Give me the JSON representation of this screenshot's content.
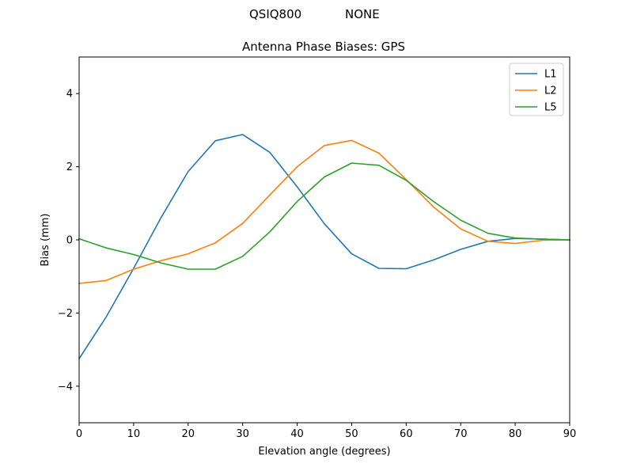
{
  "figure": {
    "suptitle_left": "QSIQ800",
    "suptitle_right": "NONE"
  },
  "chart_data": {
    "type": "line",
    "title": "Antenna Phase Biases: GPS",
    "xlabel": "Elevation angle (degrees)",
    "ylabel": "Bias (mm)",
    "xlim": [
      0,
      90
    ],
    "ylim": [
      -5,
      5
    ],
    "xticks": [
      0,
      10,
      20,
      30,
      40,
      50,
      60,
      70,
      80,
      90
    ],
    "yticks": [
      -4,
      -2,
      0,
      2,
      4
    ],
    "grid": false,
    "legend_position": "top-right",
    "x": [
      0,
      5,
      10,
      15,
      20,
      25,
      30,
      35,
      40,
      45,
      50,
      55,
      60,
      65,
      70,
      75,
      80,
      85,
      90
    ],
    "series": [
      {
        "name": "L1",
        "color": "#1f77b4",
        "values": [
          -3.25,
          -2.1,
          -0.78,
          0.6,
          1.87,
          2.71,
          2.88,
          2.39,
          1.45,
          0.44,
          -0.38,
          -0.78,
          -0.79,
          -0.55,
          -0.26,
          -0.04,
          0.04,
          0.02,
          0.0
        ]
      },
      {
        "name": "L2",
        "color": "#ff7f0e",
        "values": [
          -1.19,
          -1.11,
          -0.8,
          -0.57,
          -0.38,
          -0.08,
          0.45,
          1.23,
          2.0,
          2.58,
          2.72,
          2.37,
          1.65,
          0.9,
          0.3,
          -0.04,
          -0.1,
          -0.01,
          0.0
        ]
      },
      {
        "name": "L5",
        "color": "#2ca02c",
        "values": [
          0.03,
          -0.22,
          -0.4,
          -0.63,
          -0.8,
          -0.8,
          -0.45,
          0.22,
          1.05,
          1.72,
          2.1,
          2.04,
          1.63,
          1.05,
          0.54,
          0.18,
          0.05,
          0.02,
          0.0
        ]
      }
    ]
  }
}
